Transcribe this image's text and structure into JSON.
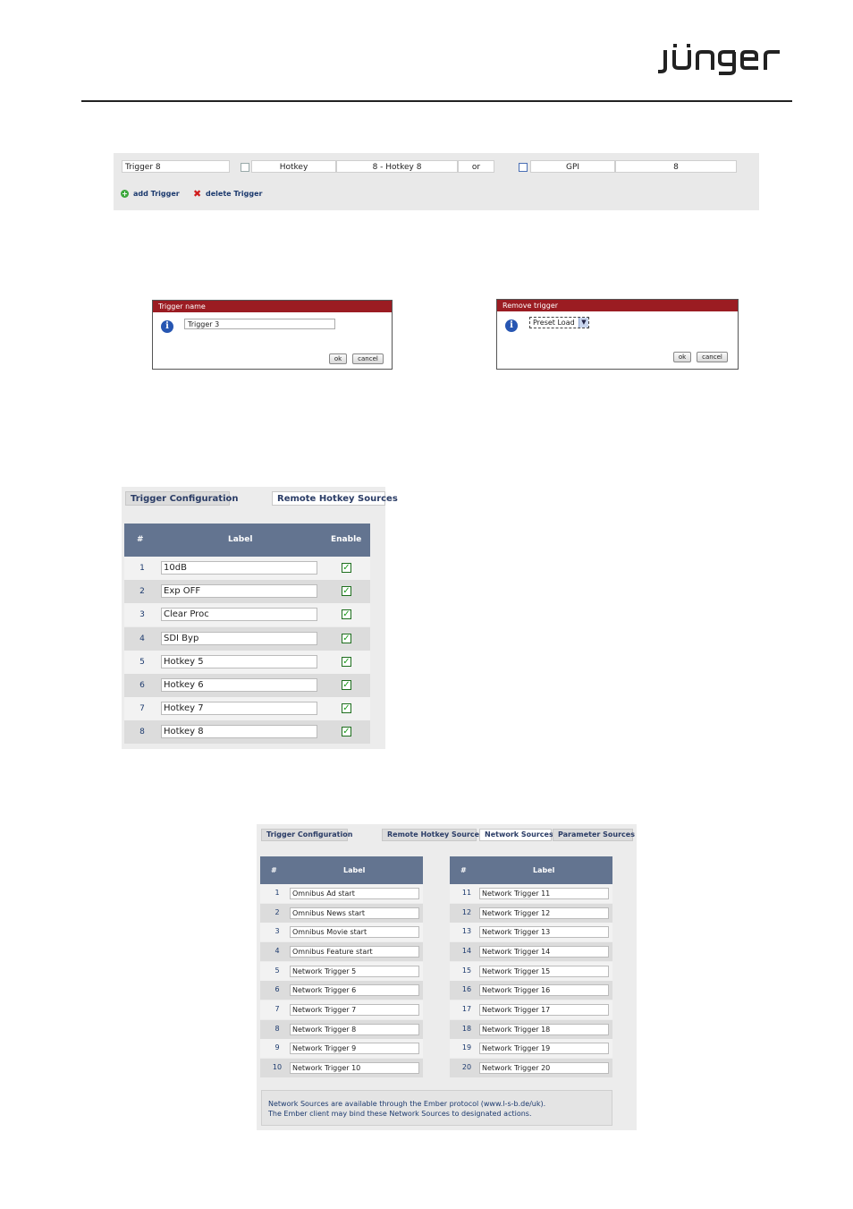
{
  "header": {
    "logo_text": "jünger"
  },
  "trigger_row": {
    "name": "Trigger 8",
    "hotkey_type": "Hotkey",
    "hotkey_value": "8 - Hotkey 8",
    "operator": "or",
    "gpi_type": "GPI",
    "gpi_value": "8",
    "add_label": "add Trigger",
    "delete_label": "delete Trigger"
  },
  "dialog_name": {
    "title": "Trigger name",
    "value": "Trigger 3",
    "ok": "ok",
    "cancel": "cancel"
  },
  "dialog_remove": {
    "title": "Remove trigger",
    "selected": "Preset Load",
    "ok": "ok",
    "cancel": "cancel"
  },
  "hotkey_panel": {
    "tabs": [
      "Trigger Configuration",
      "Remote Hotkey Sources"
    ],
    "columns": {
      "num": "#",
      "label": "Label",
      "enable": "Enable"
    },
    "rows": [
      {
        "num": "1",
        "label": "10dB"
      },
      {
        "num": "2",
        "label": "Exp OFF"
      },
      {
        "num": "3",
        "label": "Clear Proc"
      },
      {
        "num": "4",
        "label": "SDI Byp"
      },
      {
        "num": "5",
        "label": "Hotkey 5"
      },
      {
        "num": "6",
        "label": "Hotkey 6"
      },
      {
        "num": "7",
        "label": "Hotkey 7"
      },
      {
        "num": "8",
        "label": "Hotkey 8"
      }
    ]
  },
  "network_panel": {
    "tabs": [
      "Trigger Configuration",
      "Remote Hotkey Sources",
      "Network Sources",
      "Parameter Sources"
    ],
    "columns": {
      "num": "#",
      "label": "Label"
    },
    "left_rows": [
      {
        "num": "1",
        "label": "Omnibus Ad start"
      },
      {
        "num": "2",
        "label": "Omnibus News start"
      },
      {
        "num": "3",
        "label": "Omnibus Movie start"
      },
      {
        "num": "4",
        "label": "Omnibus Feature start"
      },
      {
        "num": "5",
        "label": "Network Trigger 5"
      },
      {
        "num": "6",
        "label": "Network Trigger 6"
      },
      {
        "num": "7",
        "label": "Network Trigger 7"
      },
      {
        "num": "8",
        "label": "Network Trigger 8"
      },
      {
        "num": "9",
        "label": "Network Trigger 9"
      },
      {
        "num": "10",
        "label": "Network Trigger 10"
      }
    ],
    "right_rows": [
      {
        "num": "11",
        "label": "Network Trigger 11"
      },
      {
        "num": "12",
        "label": "Network Trigger 12"
      },
      {
        "num": "13",
        "label": "Network Trigger 13"
      },
      {
        "num": "14",
        "label": "Network Trigger 14"
      },
      {
        "num": "15",
        "label": "Network Trigger 15"
      },
      {
        "num": "16",
        "label": "Network Trigger 16"
      },
      {
        "num": "17",
        "label": "Network Trigger 17"
      },
      {
        "num": "18",
        "label": "Network Trigger 18"
      },
      {
        "num": "19",
        "label": "Network Trigger 19"
      },
      {
        "num": "20",
        "label": "Network Trigger 20"
      }
    ],
    "note_line1": "Network Sources are available through the Ember protocol (www.l-s-b.de/uk).",
    "note_line2": "The Ember client may bind these Network Sources to designated actions."
  }
}
